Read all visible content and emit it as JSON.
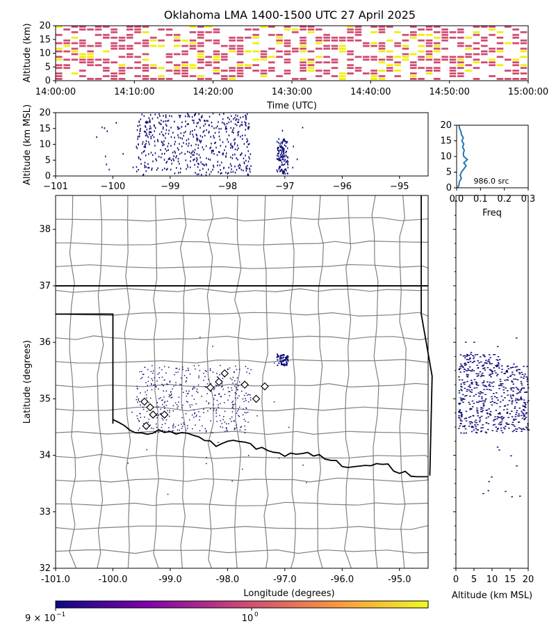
{
  "title": "Oklahoma LMA 1400-1500 UTC 27 April 2025",
  "colors": {
    "source": "#0a0a78",
    "mid": "#d04a6e",
    "high": "#f0f000",
    "county": "#808080",
    "state": "#000000",
    "profile": "#1f77b4"
  },
  "colorbar": {
    "label_low": "9 × 10",
    "label_low_exp": "−1",
    "label_high": "10",
    "label_high_exp": "0",
    "stops": [
      "#0d0887",
      "#7e03a8",
      "#cc4778",
      "#f89540",
      "#f0f921"
    ]
  },
  "chart_data": [
    {
      "id": "time-height",
      "type": "heatmap",
      "xlabel": "Time (UTC)",
      "ylabel": "Altitude (km)",
      "ylim": [
        0,
        20
      ],
      "xticks": [
        "14:00:00",
        "14:10:00",
        "14:20:00",
        "14:30:00",
        "14:40:00",
        "14:50:00",
        "15:00:00"
      ],
      "yticks": [
        "0",
        "5",
        "10",
        "15",
        "20"
      ],
      "xlim_minutes": [
        0,
        60
      ],
      "scale": "log",
      "note_min_max": [
        0.9,
        1.1
      ]
    },
    {
      "id": "lon-height",
      "type": "scatter",
      "ylabel": "Altitude (km MSL)",
      "xlim": [
        -101,
        -94.5
      ],
      "ylim": [
        0,
        20
      ],
      "xticks": [
        "−101",
        "−100",
        "−99",
        "−98",
        "−97",
        "−96",
        "−95"
      ],
      "yticks": [
        "0",
        "5",
        "10",
        "15",
        "20"
      ],
      "clusters": [
        {
          "lon_range": [
            -99.6,
            -97.6
          ],
          "alt_range": [
            0.5,
            20
          ]
        },
        {
          "lon_range": [
            -97.15,
            -96.95
          ],
          "alt_range": [
            1,
            12
          ]
        }
      ]
    },
    {
      "id": "alt-histogram",
      "type": "line",
      "xlabel": "Freq",
      "xlim": [
        0,
        0.3
      ],
      "ylim": [
        0,
        20
      ],
      "xticks": [
        "0.0",
        "0.1",
        "0.2",
        "0.3"
      ],
      "yticks": [
        "0",
        "5",
        "10",
        "15",
        "20"
      ],
      "annotation": "986.0 src",
      "profile": [
        {
          "alt": 0,
          "freq": 0.005
        },
        {
          "alt": 1,
          "freq": 0.01
        },
        {
          "alt": 2,
          "freq": 0.012
        },
        {
          "alt": 3,
          "freq": 0.02
        },
        {
          "alt": 4,
          "freq": 0.015
        },
        {
          "alt": 5,
          "freq": 0.02
        },
        {
          "alt": 6,
          "freq": 0.03
        },
        {
          "alt": 7,
          "freq": 0.04
        },
        {
          "alt": 8,
          "freq": 0.03
        },
        {
          "alt": 9,
          "freq": 0.045
        },
        {
          "alt": 10,
          "freq": 0.03
        },
        {
          "alt": 11,
          "freq": 0.028
        },
        {
          "alt": 12,
          "freq": 0.032
        },
        {
          "alt": 13,
          "freq": 0.025
        },
        {
          "alt": 14,
          "freq": 0.03
        },
        {
          "alt": 15,
          "freq": 0.022
        },
        {
          "alt": 16,
          "freq": 0.028
        },
        {
          "alt": 17,
          "freq": 0.02
        },
        {
          "alt": 18,
          "freq": 0.018
        },
        {
          "alt": 19,
          "freq": 0.012
        },
        {
          "alt": 20,
          "freq": 0.01
        }
      ]
    },
    {
      "id": "plan-view",
      "type": "scatter",
      "xlabel": "Longitude (degrees)",
      "ylabel": "Latitude (degrees)",
      "xlim": [
        -101,
        -94.5
      ],
      "ylim": [
        32,
        38.6
      ],
      "xticks": [
        "-101.0",
        "-100.0",
        "-99.0",
        "-98.0",
        "-97.0",
        "-96.0",
        "-95.0"
      ],
      "yticks": [
        "32",
        "33",
        "34",
        "35",
        "36",
        "37",
        "38"
      ],
      "stations": [
        [
          -99.45,
          34.95
        ],
        [
          -99.35,
          34.85
        ],
        [
          -99.3,
          34.72
        ],
        [
          -99.42,
          34.52
        ],
        [
          -99.1,
          34.72
        ],
        [
          -98.3,
          35.2
        ],
        [
          -98.15,
          35.3
        ],
        [
          -98.05,
          35.45
        ],
        [
          -97.7,
          35.25
        ],
        [
          -97.5,
          35.0
        ],
        [
          -97.35,
          35.22
        ]
      ],
      "clusters": [
        {
          "lon_range": [
            -99.6,
            -97.6
          ],
          "lat_range": [
            34.4,
            35.6
          ]
        },
        {
          "lon_range": [
            -97.15,
            -96.95
          ],
          "lat_range": [
            35.6,
            35.8
          ]
        }
      ]
    },
    {
      "id": "alt-lat",
      "type": "scatter",
      "xlabel": "Altitude (km MSL)",
      "xlim": [
        0,
        20
      ],
      "xticks": [
        "0",
        "5",
        "10",
        "15",
        "20"
      ]
    }
  ]
}
